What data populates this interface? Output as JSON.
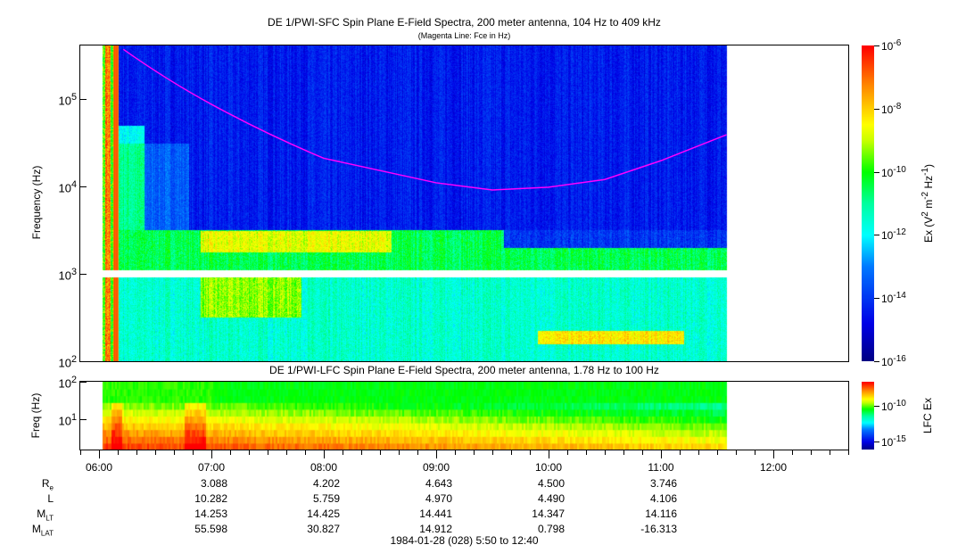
{
  "chart_data": [
    {
      "type": "heatmap",
      "title": "DE 1/PWI-SFC  Spin Plane E-Field Spectra, 200 meter antenna, 104 Hz to 409 kHz",
      "subtitle": "(Magenta Line: Fce in Hz)",
      "ylabel": "Frequency (Hz)",
      "yscale": "log",
      "ylim": [
        100,
        409000
      ],
      "yticks": [
        "10^2",
        "10^3",
        "10^4",
        "10^5"
      ],
      "colorbar": {
        "label": "Ex (V^2 m^-2 Hz^-1)",
        "scale": "log",
        "range": [
          1e-16,
          1e-06
        ],
        "ticks": [
          "10^-6",
          "10^-8",
          "10^-10",
          "10^-12",
          "10^-14",
          "10^-16"
        ],
        "colormap": "rainbow"
      },
      "fce_line": {
        "color": "#ff00ff",
        "time": [
          "06:13",
          "07:00",
          "08:00",
          "09:00",
          "09:30",
          "10:00",
          "10:30",
          "11:00",
          "11:35"
        ],
        "hz": [
          370000,
          87000,
          21000,
          11000,
          9100,
          9800,
          12000,
          19700,
          39000
        ]
      },
      "data_gap_hz": 1000,
      "data_time_range": [
        "06:02",
        "11:35"
      ]
    },
    {
      "type": "heatmap",
      "title": "DE 1/PWI-LFC  Spin Plane E-Field Spectra, 200 meter antenna, 1.78 Hz to 100 Hz",
      "ylabel": "Freq (Hz)",
      "yscale": "log",
      "ylim": [
        1.78,
        100
      ],
      "yticks": [
        "10^1",
        "10^2"
      ],
      "colorbar": {
        "label": "LFC Ex",
        "scale": "log",
        "ticks": [
          "10^-10",
          "10^-15"
        ],
        "colormap": "rainbow"
      }
    }
  ],
  "xaxis": {
    "range": [
      "05:50",
      "12:40"
    ],
    "ticks": [
      "06:00",
      "07:00",
      "08:00",
      "09:00",
      "10:00",
      "11:00",
      "12:00"
    ],
    "label": "1984-01-28 (028) 5:50 to 12:40"
  },
  "ephemeris": [
    {
      "label": "R",
      "sub": "e",
      "values": [
        "3.088",
        "4.202",
        "4.643",
        "4.500",
        "3.746"
      ]
    },
    {
      "label": "L",
      "sub": "",
      "values": [
        "10.282",
        "5.759",
        "4.970",
        "4.490",
        "4.106"
      ]
    },
    {
      "label": "M",
      "sub": "LT",
      "values": [
        "14.253",
        "14.425",
        "14.441",
        "14.347",
        "14.116"
      ]
    },
    {
      "label": "M",
      "sub": "LAT",
      "values": [
        "55.598",
        "30.827",
        "14.912",
        "0.798",
        "-16.313"
      ]
    }
  ]
}
